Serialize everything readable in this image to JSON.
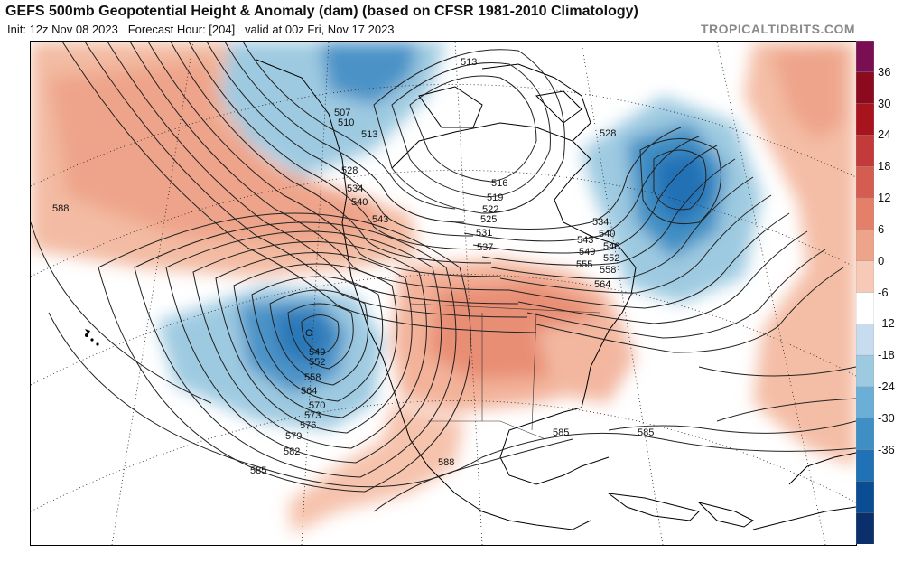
{
  "header": {
    "title": "GEFS 500mb Geopotential Height & Anomaly (dam) (based on CFSR 1981-2010 Climatology)",
    "init": "Init: 12z Nov 08 2023",
    "forecast": "Forecast Hour: [204]",
    "valid": "valid at 00z Fri, Nov 17 2023",
    "watermark": "TROPICALTIDBITS.COM"
  },
  "colorbar": {
    "ticks": [
      "36",
      "30",
      "24",
      "18",
      "12",
      "6",
      "0",
      "-6",
      "-12",
      "-18",
      "-24",
      "-30",
      "-36"
    ],
    "colors": [
      "#7a0e52",
      "#8c0a1e",
      "#a8141e",
      "#c23a3a",
      "#d55c50",
      "#e4806a",
      "#eea48a",
      "#f6cab6",
      "#ffffff",
      "#c7dcef",
      "#9ecae1",
      "#6baed6",
      "#3f8fc4",
      "#2171b5",
      "#0b4d92",
      "#0a2f6b"
    ]
  },
  "contour_labels": [
    {
      "id": "c-513a",
      "text": "513"
    },
    {
      "id": "c-507",
      "text": "507"
    },
    {
      "id": "c-510",
      "text": "510"
    },
    {
      "id": "c-513b",
      "text": "513"
    },
    {
      "id": "c-528a",
      "text": "528"
    },
    {
      "id": "c-528b",
      "text": "528"
    },
    {
      "id": "c-534a",
      "text": "534"
    },
    {
      "id": "c-540a",
      "text": "540"
    },
    {
      "id": "c-543",
      "text": "543"
    },
    {
      "id": "c-516",
      "text": "516"
    },
    {
      "id": "c-519",
      "text": "519"
    },
    {
      "id": "c-522",
      "text": "522"
    },
    {
      "id": "c-525",
      "text": "525"
    },
    {
      "id": "c-531",
      "text": "531"
    },
    {
      "id": "c-537",
      "text": "537"
    },
    {
      "id": "c-534b",
      "text": "534"
    },
    {
      "id": "c-540b",
      "text": "540"
    },
    {
      "id": "c-543b",
      "text": "543"
    },
    {
      "id": "c-546",
      "text": "546"
    },
    {
      "id": "c-549b",
      "text": "549"
    },
    {
      "id": "c-552b",
      "text": "552"
    },
    {
      "id": "c-555",
      "text": "555"
    },
    {
      "id": "c-558b",
      "text": "558"
    },
    {
      "id": "c-564b",
      "text": "564"
    },
    {
      "id": "c-588a",
      "text": "588"
    },
    {
      "id": "c-549",
      "text": "549"
    },
    {
      "id": "c-552",
      "text": "552"
    },
    {
      "id": "c-558",
      "text": "558"
    },
    {
      "id": "c-564",
      "text": "564"
    },
    {
      "id": "c-570",
      "text": "570"
    },
    {
      "id": "c-573",
      "text": "573"
    },
    {
      "id": "c-576",
      "text": "576"
    },
    {
      "id": "c-579",
      "text": "579"
    },
    {
      "id": "c-582",
      "text": "582"
    },
    {
      "id": "c-585a",
      "text": "585"
    },
    {
      "id": "c-588b",
      "text": "588"
    },
    {
      "id": "c-585b",
      "text": "585"
    },
    {
      "id": "c-585c",
      "text": "585"
    }
  ]
}
